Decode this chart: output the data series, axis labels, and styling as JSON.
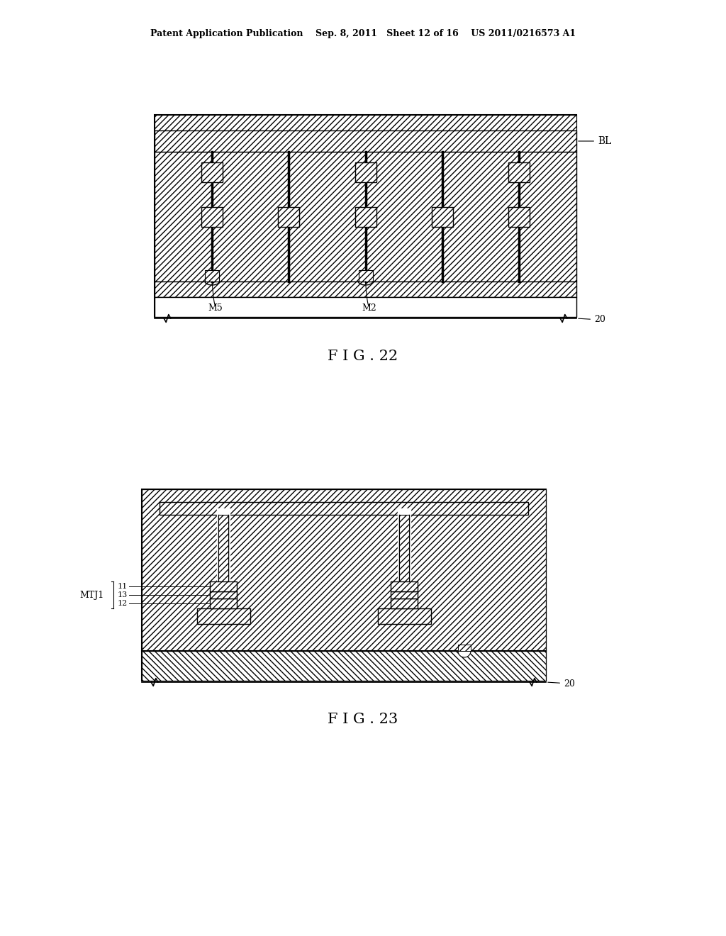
{
  "bg_color": "#ffffff",
  "line_color": "#000000",
  "fig_width": 10.24,
  "fig_height": 13.2,
  "header_text": "Patent Application Publication    Sep. 8, 2011   Sheet 12 of 16    US 2011/0216573 A1",
  "fig22_label": "F I G . 22",
  "fig23_label": "F I G . 23"
}
